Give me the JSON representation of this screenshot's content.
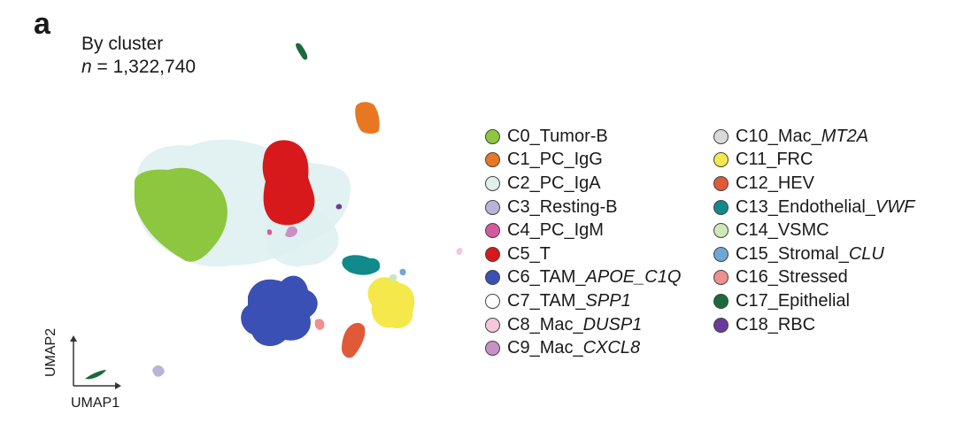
{
  "panel_letter": "a",
  "chart_data": {
    "type": "scatter",
    "title": "By cluster",
    "subtitle_var": "n",
    "subtitle_sep": " = ",
    "subtitle_value": "1,322,740",
    "xlabel": "UMAP1",
    "ylabel": "UMAP2",
    "grid": false,
    "legend_position": "right",
    "series": [
      {
        "label": "C0_Tumor-B",
        "base": "C0_Tumor-B",
        "ital": "",
        "color": "#8dc63f"
      },
      {
        "label": "C1_PC_IgG",
        "base": "C1_PC_IgG",
        "ital": "",
        "color": "#e87722"
      },
      {
        "label": "C2_PC_IgA",
        "base": "C2_PC_IgA",
        "ital": "",
        "color": "#dff0ef"
      },
      {
        "label": "C3_Resting-B",
        "base": "C3_Resting-B",
        "ital": "",
        "color": "#b8b3d8"
      },
      {
        "label": "C4_PC_IgM",
        "base": "C4_PC_IgM",
        "ital": "",
        "color": "#d45aa0"
      },
      {
        "label": "C5_T",
        "base": "C5_T",
        "ital": "",
        "color": "#d7191c"
      },
      {
        "label": "C6_TAM_APOE_C1Q",
        "base": "C6_TAM_",
        "ital": "APOE_C1Q",
        "color": "#3a50b4"
      },
      {
        "label": "C7_TAM_SPP1",
        "base": "C7_TAM_",
        "ital": "SPP1",
        "color": "#ffffff"
      },
      {
        "label": "C8_Mac_DUSP1",
        "base": "C8_Mac_",
        "ital": "DUSP1",
        "color": "#f6c6dc"
      },
      {
        "label": "C9_Mac_CXCL8",
        "base": "C9_Mac_",
        "ital": "CXCL8",
        "color": "#c990c8"
      },
      {
        "label": "C10_Mac_MT2A",
        "base": "C10_Mac_",
        "ital": "MT2A",
        "color": "#d9d9d9"
      },
      {
        "label": "C11_FRC",
        "base": "C11_FRC",
        "ital": "",
        "color": "#f5e84a"
      },
      {
        "label": "C12_HEV",
        "base": "C12_HEV",
        "ital": "",
        "color": "#e05a3a"
      },
      {
        "label": "C13_Endothelial_VWF",
        "base": "C13_Endothelial_",
        "ital": "VWF",
        "color": "#108a8a"
      },
      {
        "label": "C14_VSMC",
        "base": "C14_VSMC",
        "ital": "",
        "color": "#cfe8b8"
      },
      {
        "label": "C15_Stromal_CLU",
        "base": "C15_Stromal_",
        "ital": "CLU",
        "color": "#6da7d6"
      },
      {
        "label": "C16_Stressed",
        "base": "C16_Stressed",
        "ital": "",
        "color": "#f08f8f"
      },
      {
        "label": "C17_Epithelial",
        "base": "C17_Epithelial",
        "ital": "",
        "color": "#1b6b3a"
      },
      {
        "label": "C18_RBC",
        "base": "C18_RBC",
        "ital": "",
        "color": "#6a3b9a"
      }
    ]
  }
}
